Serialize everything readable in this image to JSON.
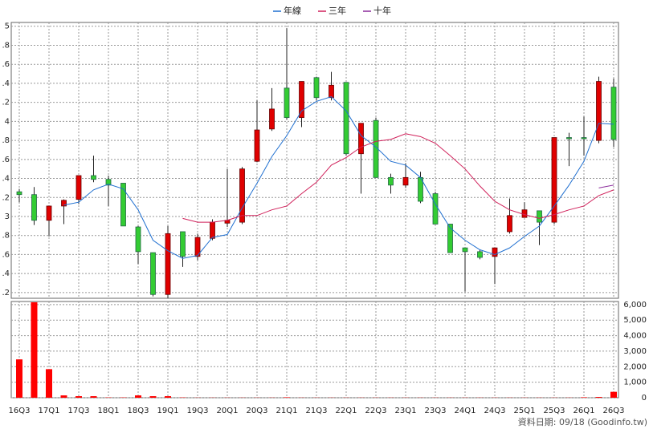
{
  "chart_data": {
    "type": "candlestick",
    "categories": [
      "16Q3",
      null,
      "17Q1",
      null,
      "17Q3",
      null,
      "18Q1",
      null,
      "18Q3",
      null,
      "19Q1",
      null,
      "19Q3",
      null,
      "20Q1",
      null,
      "20Q3",
      null,
      "21Q1",
      null,
      "21Q3",
      null,
      "22Q1",
      null,
      "22Q3",
      null,
      "23Q1",
      null,
      "23Q3",
      null,
      "24Q1",
      null,
      "24Q3",
      null,
      "25Q1",
      null,
      "25Q3",
      null,
      "26Q1",
      null,
      "26Q3"
    ],
    "open": [
      3.26,
      3.23,
      2.96,
      3.11,
      3.18,
      3.43,
      3.39,
      3.35,
      2.89,
      2.62,
      2.18,
      2.84,
      2.58,
      2.77,
      2.93,
      2.94,
      3.58,
      3.92,
      4.35,
      4.04,
      4.46,
      4.25,
      4.41,
      3.66,
      4.01,
      3.41,
      3.33,
      3.41,
      3.24,
      2.92,
      2.67,
      2.63,
      2.58,
      2.84,
      2.99,
      3.06,
      2.94,
      3.83,
      3.83,
      3.8,
      4.36
    ],
    "high": [
      3.29,
      3.31,
      3.11,
      3.18,
      3.43,
      3.64,
      3.43,
      3.35,
      2.9,
      2.62,
      2.9,
      2.84,
      2.82,
      2.97,
      3.5,
      3.52,
      4.22,
      4.35,
      4.98,
      4.42,
      4.47,
      4.52,
      4.41,
      3.98,
      4.04,
      3.45,
      3.56,
      3.47,
      3.26,
      2.92,
      2.67,
      2.65,
      2.67,
      3.19,
      3.15,
      3.06,
      3.83,
      3.88,
      4.05,
      4.47,
      4.45
    ],
    "low": [
      3.15,
      2.91,
      2.79,
      2.92,
      3.13,
      3.36,
      3.11,
      2.9,
      2.5,
      2.16,
      2.14,
      2.47,
      2.54,
      2.75,
      2.89,
      2.92,
      3.57,
      3.9,
      4.02,
      3.94,
      4.22,
      4.22,
      3.64,
      3.24,
      3.41,
      3.24,
      3.3,
      3.14,
      2.92,
      2.62,
      2.21,
      2.55,
      2.29,
      2.82,
      2.99,
      2.7,
      2.92,
      3.53,
      3.64,
      3.77,
      3.73
    ],
    "close": [
      3.23,
      2.96,
      3.11,
      3.17,
      3.43,
      3.39,
      3.33,
      2.9,
      2.63,
      2.18,
      2.82,
      2.58,
      2.78,
      2.94,
      2.96,
      3.5,
      3.91,
      4.13,
      4.04,
      4.42,
      4.25,
      4.38,
      3.66,
      3.98,
      3.41,
      3.33,
      3.41,
      3.16,
      2.92,
      2.62,
      2.63,
      2.57,
      2.67,
      3.01,
      3.07,
      2.94,
      3.83,
      3.82,
      3.82,
      4.42,
      3.81
    ],
    "up_color": "#e00000",
    "down_color": "#33cc33",
    "series": [
      {
        "name": "年線",
        "color": "#1f6fd0",
        "values": [
          null,
          null,
          null,
          3.12,
          3.15,
          3.28,
          3.34,
          3.29,
          3.07,
          2.75,
          2.64,
          2.56,
          2.59,
          2.78,
          2.81,
          3.09,
          3.35,
          3.63,
          3.85,
          4.11,
          4.21,
          4.26,
          4.11,
          3.85,
          3.73,
          3.58,
          3.54,
          3.41,
          3.13,
          2.88,
          2.75,
          2.65,
          2.6,
          2.67,
          2.79,
          2.9,
          3.11,
          3.33,
          3.58,
          3.98,
          3.97
        ]
      },
      {
        "name": "三年",
        "color": "#d0205a",
        "values": [
          null,
          null,
          null,
          null,
          null,
          null,
          null,
          null,
          null,
          null,
          null,
          2.98,
          2.94,
          2.94,
          2.96,
          3.01,
          3.01,
          3.07,
          3.11,
          3.24,
          3.36,
          3.54,
          3.62,
          3.73,
          3.79,
          3.81,
          3.87,
          3.84,
          3.77,
          3.64,
          3.5,
          3.32,
          3.16,
          3.07,
          3.02,
          2.98,
          3.02,
          3.07,
          3.11,
          3.22,
          3.28
        ]
      },
      {
        "name": "十年",
        "color": "#8a2a9a",
        "values": [
          null,
          null,
          null,
          null,
          null,
          null,
          null,
          null,
          null,
          null,
          null,
          null,
          null,
          null,
          null,
          null,
          null,
          null,
          null,
          null,
          null,
          null,
          null,
          null,
          null,
          null,
          null,
          null,
          null,
          null,
          null,
          null,
          null,
          null,
          null,
          null,
          null,
          null,
          null,
          3.3,
          3.33
        ]
      }
    ],
    "ylim": [
      2.14,
      5.04
    ],
    "yticks": [
      5,
      {
        "value": 4.8,
        "label": ".8"
      },
      {
        "value": 4.6,
        "label": ".6"
      },
      {
        "value": 4.4,
        "label": ".4"
      },
      {
        "value": 4.2,
        "label": ".2"
      },
      4,
      {
        "value": 3.8,
        "label": ".8"
      },
      {
        "value": 3.6,
        "label": ".6"
      },
      {
        "value": 3.4,
        "label": ".4"
      },
      {
        "value": 3.2,
        "label": ".2"
      },
      3,
      {
        "value": 2.8,
        "label": ".8"
      },
      {
        "value": 2.6,
        "label": ".6"
      },
      {
        "value": 2.4,
        "label": ".4"
      },
      {
        "value": 2.2,
        "label": ".2"
      }
    ],
    "volume": {
      "color": "#ff0000",
      "values": [
        2470,
        6150,
        1840,
        150,
        100,
        100,
        20,
        20,
        150,
        100,
        100,
        20,
        10,
        10,
        10,
        10,
        10,
        10,
        30,
        10,
        10,
        10,
        10,
        10,
        10,
        10,
        10,
        10,
        10,
        10,
        10,
        10,
        10,
        10,
        10,
        10,
        10,
        10,
        30,
        50,
        380
      ],
      "ylim": [
        0,
        6200
      ],
      "yticks": [
        0,
        {
          "value": 1000,
          "label": "1,000"
        },
        {
          "value": 2000,
          "label": "2,000"
        },
        {
          "value": 3000,
          "label": "3,000"
        },
        {
          "value": 4000,
          "label": "4,000"
        },
        {
          "value": 5000,
          "label": "5,000"
        },
        {
          "value": 6000,
          "label": "6,000"
        }
      ]
    },
    "grid": true,
    "footnote": "資料日期: 09/18  (Goodinfo.tw)"
  }
}
